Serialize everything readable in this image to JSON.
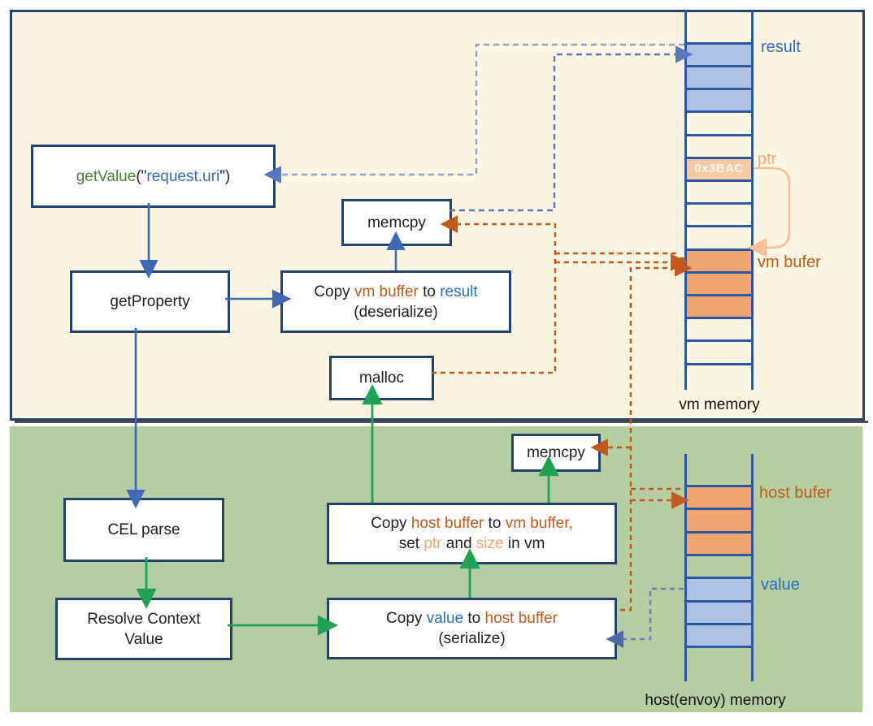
{
  "boxes": {
    "get_value": {
      "fn": "getValue",
      "open": "(\"",
      "arg": "request.uri",
      "close": "\")"
    },
    "get_property": "getProperty",
    "memcpy_top": "memcpy",
    "copy_vm_result": {
      "copy": "Copy ",
      "src": "vm buffer",
      "to": " to ",
      "dst": "result",
      "line2": "(deserialize)"
    },
    "malloc": "malloc",
    "memcpy_bottom": "memcpy",
    "cel_parse": "CEL parse",
    "resolve_context": {
      "line1": "Resolve Context",
      "line2": "Value"
    },
    "copy_host_vm": {
      "copy": "Copy ",
      "src": "host buffer",
      "to": " to ",
      "dst": "vm buffer,",
      "set": "set ",
      "ptr": "ptr",
      "and": " and ",
      "size": "size",
      "invm": " in vm"
    },
    "copy_value_host": {
      "copy": "Copy ",
      "src": "value",
      "to": " to ",
      "dst": "host buffer",
      "line2": "(serialize)"
    }
  },
  "vm_memory": {
    "title": "vm memory",
    "result_label": "result",
    "ptr_label": "ptr",
    "buffer_label": "vm bufer",
    "ptr_cell_value": "0x3BAC"
  },
  "host_memory": {
    "title": "host(envoy) memory",
    "buffer_label": "host bufer",
    "value_label": "value"
  },
  "colors": {
    "vm_background": "#fcf5e2",
    "host_background": "#b5cea0",
    "box_border": "#24426e",
    "memory_line_blue": "#2b57a2",
    "solid_arrow_blue": "#3e68b8",
    "solid_arrow_green": "#1fa351",
    "dashed_orange": "#c2591b",
    "dashed_blue": "#6484c8",
    "dashed_slate": "#7487bc",
    "fill_blue": "#abc2e4",
    "fill_orange": "#f2a470",
    "fill_peach": "#f6caa6",
    "ptr_curve": "#f5be97",
    "label_blue": "#2e6fc0",
    "label_orange": "#c2591b"
  }
}
